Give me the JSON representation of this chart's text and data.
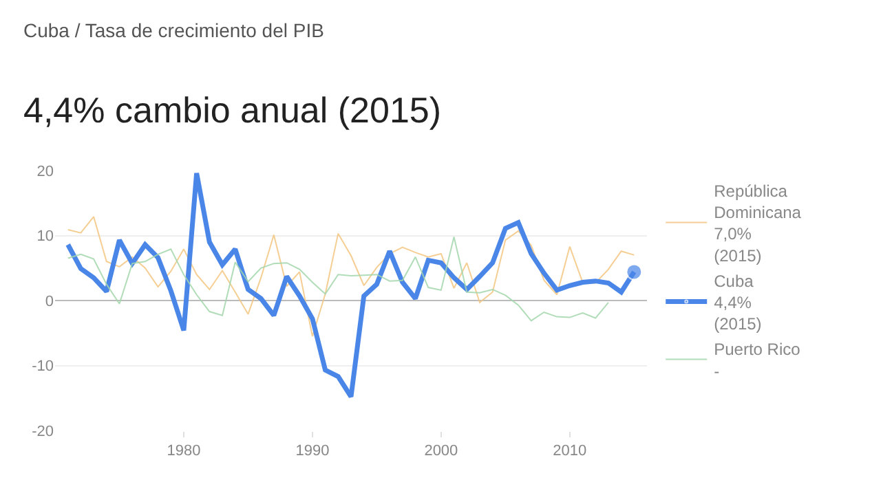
{
  "chart_data": {
    "type": "line",
    "subtitle": "Cuba / Tasa de crecimiento del PIB",
    "title": "4,4% cambio anual (2015)",
    "x": [
      1971,
      1972,
      1973,
      1974,
      1975,
      1976,
      1977,
      1978,
      1979,
      1980,
      1981,
      1982,
      1983,
      1984,
      1985,
      1986,
      1987,
      1988,
      1989,
      1990,
      1991,
      1992,
      1993,
      1994,
      1995,
      1996,
      1997,
      1998,
      1999,
      2000,
      2001,
      2002,
      2003,
      2004,
      2005,
      2006,
      2007,
      2008,
      2009,
      2010,
      2011,
      2012,
      2013,
      2014,
      2015
    ],
    "series": [
      {
        "name": "República Dominicana",
        "color": "#f3c680",
        "values": [
          10.9,
          10.4,
          12.9,
          6.0,
          5.2,
          6.7,
          5.0,
          2.1,
          4.5,
          7.9,
          4.0,
          1.7,
          4.6,
          1.3,
          -2.1,
          3.5,
          10.1,
          2.2,
          4.4,
          -5.5,
          1.0,
          10.3,
          6.9,
          2.3,
          5.1,
          7.2,
          8.2,
          7.4,
          6.7,
          7.2,
          1.9,
          5.8,
          -0.3,
          1.3,
          9.3,
          10.7,
          8.5,
          3.1,
          0.9,
          8.3,
          2.8,
          2.7,
          4.8,
          7.6,
          7.0
        ]
      },
      {
        "name": "Cuba",
        "color": "#4a86e8",
        "values": [
          8.6,
          4.9,
          3.5,
          1.4,
          9.3,
          5.7,
          8.6,
          6.6,
          1.5,
          -4.6,
          19.6,
          9.0,
          5.5,
          7.9,
          1.7,
          0.3,
          -2.3,
          3.7,
          0.7,
          -2.8,
          -10.7,
          -11.7,
          -14.8,
          0.7,
          2.5,
          7.6,
          2.8,
          0.3,
          6.2,
          5.8,
          3.5,
          1.7,
          3.7,
          5.8,
          11.1,
          12.0,
          7.2,
          4.2,
          1.6,
          2.3,
          2.8,
          3.0,
          2.7,
          1.3,
          4.4
        ]
      },
      {
        "name": "Puerto Rico",
        "color": "#a3d6ab",
        "values": [
          6.5,
          7.1,
          6.4,
          2.5,
          -0.5,
          5.7,
          6.0,
          7.1,
          7.9,
          4.0,
          0.9,
          -1.7,
          -2.3,
          5.9,
          2.9,
          5.0,
          5.7,
          5.8,
          4.8,
          2.8,
          1.0,
          4.0,
          3.8,
          3.9,
          4.0,
          3.0,
          3.1,
          6.7,
          2.0,
          1.6,
          9.8,
          1.3,
          1.2,
          1.7,
          0.8,
          -0.7,
          -3.1,
          -1.8,
          -2.5,
          -2.6,
          -1.9,
          -2.7,
          -0.3,
          null,
          null
        ]
      }
    ],
    "annotations": [
      "7,0%\n(2015)",
      "4,4%\n(2015)",
      "-"
    ],
    "xlim": [
      1970,
      2016
    ],
    "xticks": [
      1980,
      1990,
      2000,
      2010
    ],
    "ylim": [
      -20,
      20
    ],
    "yticks": [
      -20,
      -10,
      0,
      10,
      20
    ],
    "grid": "y",
    "legend": "right"
  }
}
